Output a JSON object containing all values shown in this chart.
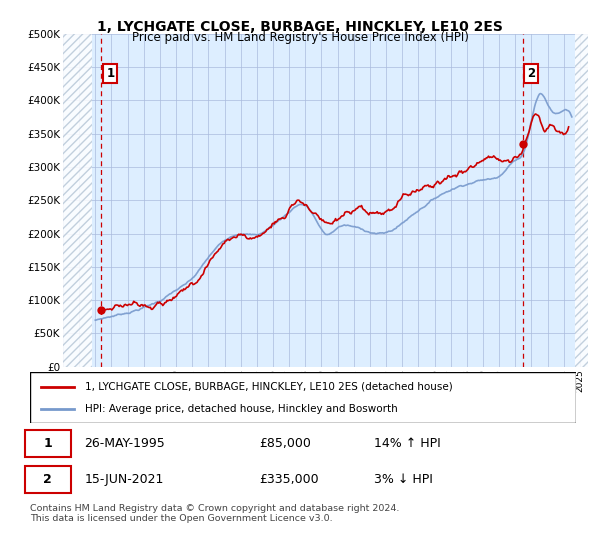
{
  "title": "1, LYCHGATE CLOSE, BURBAGE, HINCKLEY, LE10 2ES",
  "subtitle": "Price paid vs. HM Land Registry's House Price Index (HPI)",
  "ylabel_ticks": [
    0,
    50000,
    100000,
    150000,
    200000,
    250000,
    300000,
    350000,
    400000,
    450000,
    500000
  ],
  "ylabel_labels": [
    "£0",
    "£50K",
    "£100K",
    "£150K",
    "£200K",
    "£250K",
    "£300K",
    "£350K",
    "£400K",
    "£450K",
    "£500K"
  ],
  "ylim": [
    0,
    500000
  ],
  "xmin": 1993.0,
  "xmax": 2025.5,
  "data_xmin": 1994.8,
  "data_xmax": 2024.7,
  "point1_x": 1995.38,
  "point1_y": 85000,
  "point2_x": 2021.45,
  "point2_y": 335000,
  "legend_line1": "1, LYCHGATE CLOSE, BURBAGE, HINCKLEY, LE10 2ES (detached house)",
  "legend_line2": "HPI: Average price, detached house, Hinckley and Bosworth",
  "p1_date": "26-MAY-1995",
  "p1_price": "£85,000",
  "p1_hpi": "14% ↑ HPI",
  "p2_date": "15-JUN-2021",
  "p2_price": "£335,000",
  "p2_hpi": "3% ↓ HPI",
  "footnote": "Contains HM Land Registry data © Crown copyright and database right 2024.\nThis data is licensed under the Open Government Licence v3.0.",
  "hpi_color": "#7799cc",
  "price_color": "#cc0000",
  "bg_color": "#ddeeff",
  "grid_color": "#aabbdd",
  "hatch_color": "#b8c8d8"
}
